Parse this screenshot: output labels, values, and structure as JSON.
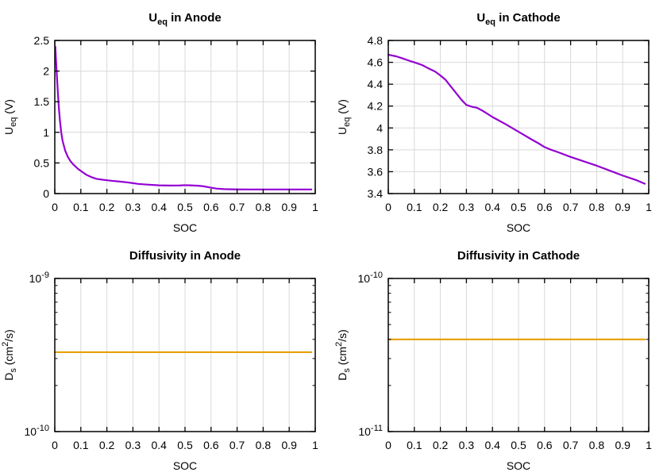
{
  "figure": {
    "background": "#ffffff",
    "grid_color": "#d9d9d9",
    "axis_color": "#000000",
    "text_color": "#000000"
  },
  "chart_data": [
    {
      "id": "ueq-anode",
      "type": "line",
      "title": "U_{eq} in Anode",
      "xlabel": "SOC",
      "ylabel": "U_{eq} (V)",
      "xlim": [
        0,
        1
      ],
      "ylim": [
        0,
        2.5
      ],
      "yscale": "linear",
      "grid": true,
      "legend": "none",
      "color": "#9400d3",
      "xtick_values": [
        0,
        0.1,
        0.2,
        0.3,
        0.4,
        0.5,
        0.6,
        0.7,
        0.8,
        0.9,
        1
      ],
      "xtick_labels": [
        "0",
        "0.1",
        "0.2",
        "0.3",
        "0.4",
        "0.5",
        "0.6",
        "0.7",
        "0.8",
        "0.9",
        "1"
      ],
      "ytick_values": [
        0,
        0.5,
        1,
        1.5,
        2,
        2.5
      ],
      "ytick_labels": [
        "0",
        "0.5",
        "1",
        "1.5",
        "2",
        "2.5"
      ],
      "x": [
        0.002,
        0.005,
        0.008,
        0.012,
        0.016,
        0.02,
        0.025,
        0.03,
        0.04,
        0.05,
        0.06,
        0.07,
        0.08,
        0.09,
        0.1,
        0.11,
        0.12,
        0.13,
        0.14,
        0.15,
        0.16,
        0.18,
        0.2,
        0.22,
        0.25,
        0.28,
        0.3,
        0.32,
        0.35,
        0.4,
        0.44,
        0.48,
        0.5,
        0.52,
        0.55,
        0.57,
        0.6,
        0.62,
        0.65,
        0.68,
        0.7,
        0.75,
        0.8,
        0.85,
        0.9,
        0.95,
        0.985
      ],
      "y": [
        2.4,
        2.15,
        1.93,
        1.63,
        1.38,
        1.18,
        0.99,
        0.86,
        0.7,
        0.6,
        0.53,
        0.48,
        0.44,
        0.4,
        0.37,
        0.34,
        0.31,
        0.29,
        0.27,
        0.255,
        0.24,
        0.228,
        0.218,
        0.208,
        0.196,
        0.182,
        0.17,
        0.158,
        0.148,
        0.134,
        0.131,
        0.133,
        0.137,
        0.134,
        0.128,
        0.12,
        0.096,
        0.082,
        0.073,
        0.07,
        0.068,
        0.067,
        0.067,
        0.067,
        0.067,
        0.067,
        0.067
      ]
    },
    {
      "id": "ueq-cathode",
      "type": "line",
      "title": "U_{eq} in Cathode",
      "xlabel": "SOC",
      "ylabel": "U_{eq} (V)",
      "xlim": [
        0,
        1
      ],
      "ylim": [
        3.4,
        4.8
      ],
      "yscale": "linear",
      "grid": true,
      "legend": "none",
      "color": "#9400d3",
      "xtick_values": [
        0,
        0.1,
        0.2,
        0.3,
        0.4,
        0.5,
        0.6,
        0.7,
        0.8,
        0.9,
        1
      ],
      "xtick_labels": [
        "0",
        "0.1",
        "0.2",
        "0.3",
        "0.4",
        "0.5",
        "0.6",
        "0.7",
        "0.8",
        "0.9",
        "1"
      ],
      "ytick_values": [
        3.4,
        3.6,
        3.8,
        4,
        4.2,
        4.4,
        4.6,
        4.8
      ],
      "ytick_labels": [
        "3.4",
        "3.6",
        "3.8",
        "4",
        "4.2",
        "4.4",
        "4.6",
        "4.8"
      ],
      "x": [
        0,
        0.03,
        0.05,
        0.08,
        0.1,
        0.13,
        0.15,
        0.18,
        0.2,
        0.22,
        0.25,
        0.28,
        0.3,
        0.32,
        0.34,
        0.36,
        0.38,
        0.4,
        0.45,
        0.5,
        0.55,
        0.58,
        0.6,
        0.62,
        0.65,
        0.7,
        0.75,
        0.8,
        0.85,
        0.9,
        0.95,
        0.985
      ],
      "y": [
        4.67,
        4.655,
        4.64,
        4.615,
        4.6,
        4.575,
        4.55,
        4.515,
        4.48,
        4.44,
        4.35,
        4.26,
        4.21,
        4.195,
        4.185,
        4.16,
        4.13,
        4.1,
        4.035,
        3.965,
        3.895,
        3.855,
        3.825,
        3.805,
        3.78,
        3.735,
        3.695,
        3.655,
        3.61,
        3.565,
        3.525,
        3.49
      ]
    },
    {
      "id": "diffusivity-anode",
      "type": "line",
      "title": "Diffusivity in Anode",
      "xlabel": "SOC",
      "ylabel": "D_{s} (cm^{2}/s)",
      "xlim": [
        0,
        1
      ],
      "ylim": [
        1e-10,
        1e-09
      ],
      "yscale": "log",
      "grid": true,
      "legend": "none",
      "color": "#e69f00",
      "xtick_values": [
        0,
        0.1,
        0.2,
        0.3,
        0.4,
        0.5,
        0.6,
        0.7,
        0.8,
        0.9,
        1
      ],
      "xtick_labels": [
        "0",
        "0.1",
        "0.2",
        "0.3",
        "0.4",
        "0.5",
        "0.6",
        "0.7",
        "0.8",
        "0.9",
        "1"
      ],
      "ytick_values": [
        1e-10,
        1e-09
      ],
      "ytick_labels": [
        "10^{-10}",
        "10^{-9}"
      ],
      "x": [
        0,
        0.985
      ],
      "y": [
        3.3e-10,
        3.3e-10
      ]
    },
    {
      "id": "diffusivity-cathode",
      "type": "line",
      "title": "Diffusivity in Cathode",
      "xlabel": "SOC",
      "ylabel": "D_{s} (cm^{2}/s)",
      "xlim": [
        0,
        1
      ],
      "ylim": [
        1e-11,
        1e-10
      ],
      "yscale": "log",
      "grid": true,
      "legend": "none",
      "color": "#e69f00",
      "xtick_values": [
        0,
        0.1,
        0.2,
        0.3,
        0.4,
        0.5,
        0.6,
        0.7,
        0.8,
        0.9,
        1
      ],
      "xtick_labels": [
        "0",
        "0.1",
        "0.2",
        "0.3",
        "0.4",
        "0.5",
        "0.6",
        "0.7",
        "0.8",
        "0.9",
        "1"
      ],
      "ytick_values": [
        1e-11,
        1e-10
      ],
      "ytick_labels": [
        "10^{-11}",
        "10^{-10}"
      ],
      "x": [
        0,
        0.985
      ],
      "y": [
        4e-11,
        4e-11
      ]
    }
  ]
}
